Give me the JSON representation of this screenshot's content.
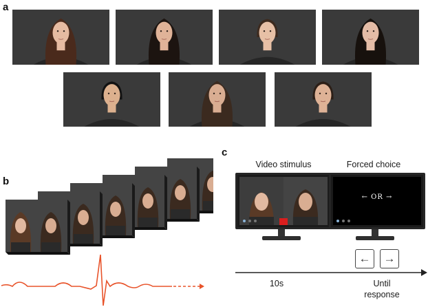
{
  "panels": {
    "a": "a",
    "b": "b",
    "c": "c"
  },
  "panel_c": {
    "video_label": "Video stimulus",
    "choice_label": "Forced choice",
    "choice_text": "← OR →",
    "left_key": "←",
    "right_key": "→",
    "time_1": "10s",
    "time_2_line1": "Until",
    "time_2_line2": "response"
  },
  "colors": {
    "background": "#ffffff",
    "photo_backdrop": "#3a3a3a",
    "ecg_trace": "#e8532a",
    "marker_red": "#d91e1e",
    "screen_dots": "#8ab4d8"
  }
}
